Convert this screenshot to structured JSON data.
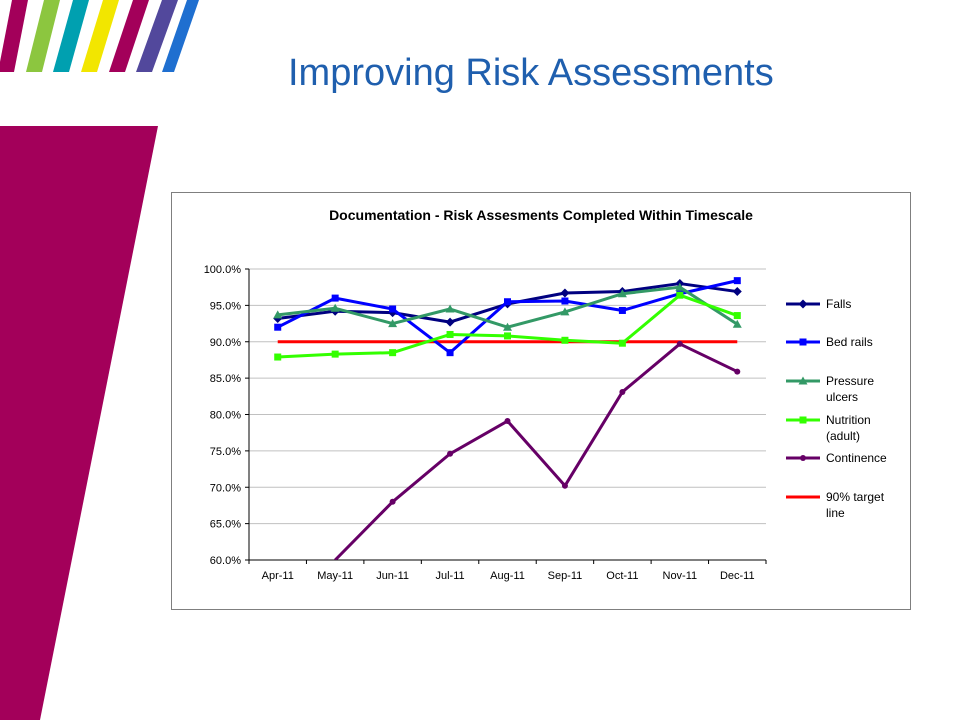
{
  "slide": {
    "title": "Improving Risk Assessments",
    "colors": {
      "title": "#1f5fae",
      "left_band": "#a3005a",
      "top_stripes": [
        "#a3005a",
        "#8cc63f",
        "#00a0b0",
        "#f2e600",
        "#a3005a",
        "#52489c",
        "#1f6fd0"
      ]
    }
  },
  "chart_data": {
    "type": "line",
    "title": "Documentation - Risk Assesments Completed Within Timescale",
    "categories": [
      "Apr-11",
      "May-11",
      "Jun-11",
      "Jul-11",
      "Aug-11",
      "Sep-11",
      "Oct-11",
      "Nov-11",
      "Dec-11"
    ],
    "yticks": [
      "100.0%",
      "95.0%",
      "90.0%",
      "85.0%",
      "80.0%",
      "75.0%",
      "70.0%",
      "65.0%",
      "60.0%"
    ],
    "ylim": [
      60,
      100
    ],
    "grid": "horizontal",
    "legend_position": "right",
    "series": [
      {
        "name": "Falls",
        "color": "#000080",
        "marker": "diamond",
        "values": [
          93.2,
          94.2,
          94.0,
          92.7,
          95.2,
          96.7,
          96.9,
          98.0,
          96.9
        ]
      },
      {
        "name": "Bed rails",
        "color": "#0000ff",
        "marker": "square",
        "values": [
          92.0,
          96.0,
          94.5,
          88.5,
          95.5,
          95.6,
          94.3,
          96.6,
          98.4
        ]
      },
      {
        "name": "Pressure ulcers",
        "color": "#339966",
        "marker": "triangle",
        "values": [
          93.7,
          94.6,
          92.5,
          94.5,
          92.0,
          94.1,
          96.6,
          97.5,
          92.4
        ]
      },
      {
        "name": "Nutrition (adult)",
        "color": "#33ff00",
        "marker": "square",
        "values": [
          87.9,
          88.3,
          88.5,
          91.0,
          90.8,
          90.2,
          89.8,
          96.4,
          93.6
        ]
      },
      {
        "name": "Continence",
        "color": "#660066",
        "marker": "circle",
        "values": [
          null,
          60.0,
          68.0,
          74.6,
          79.1,
          70.2,
          83.1,
          89.7,
          85.9
        ],
        "note_visible_segment_starts_below_axis_between_Apr_and_May": true
      },
      {
        "name": "90% target line",
        "color": "#ff0000",
        "marker": "none",
        "values": [
          90,
          90,
          90,
          90,
          90,
          90,
          90,
          90,
          90
        ]
      }
    ],
    "legend": [
      {
        "lines": [
          "Falls"
        ]
      },
      {
        "lines": [
          "Bed rails"
        ]
      },
      {
        "lines": [
          "Pressure",
          "ulcers"
        ]
      },
      {
        "lines": [
          "Nutrition",
          "(adult)"
        ]
      },
      {
        "lines": [
          "Continence"
        ]
      },
      {
        "lines": [
          "90% target",
          "line"
        ]
      }
    ]
  }
}
